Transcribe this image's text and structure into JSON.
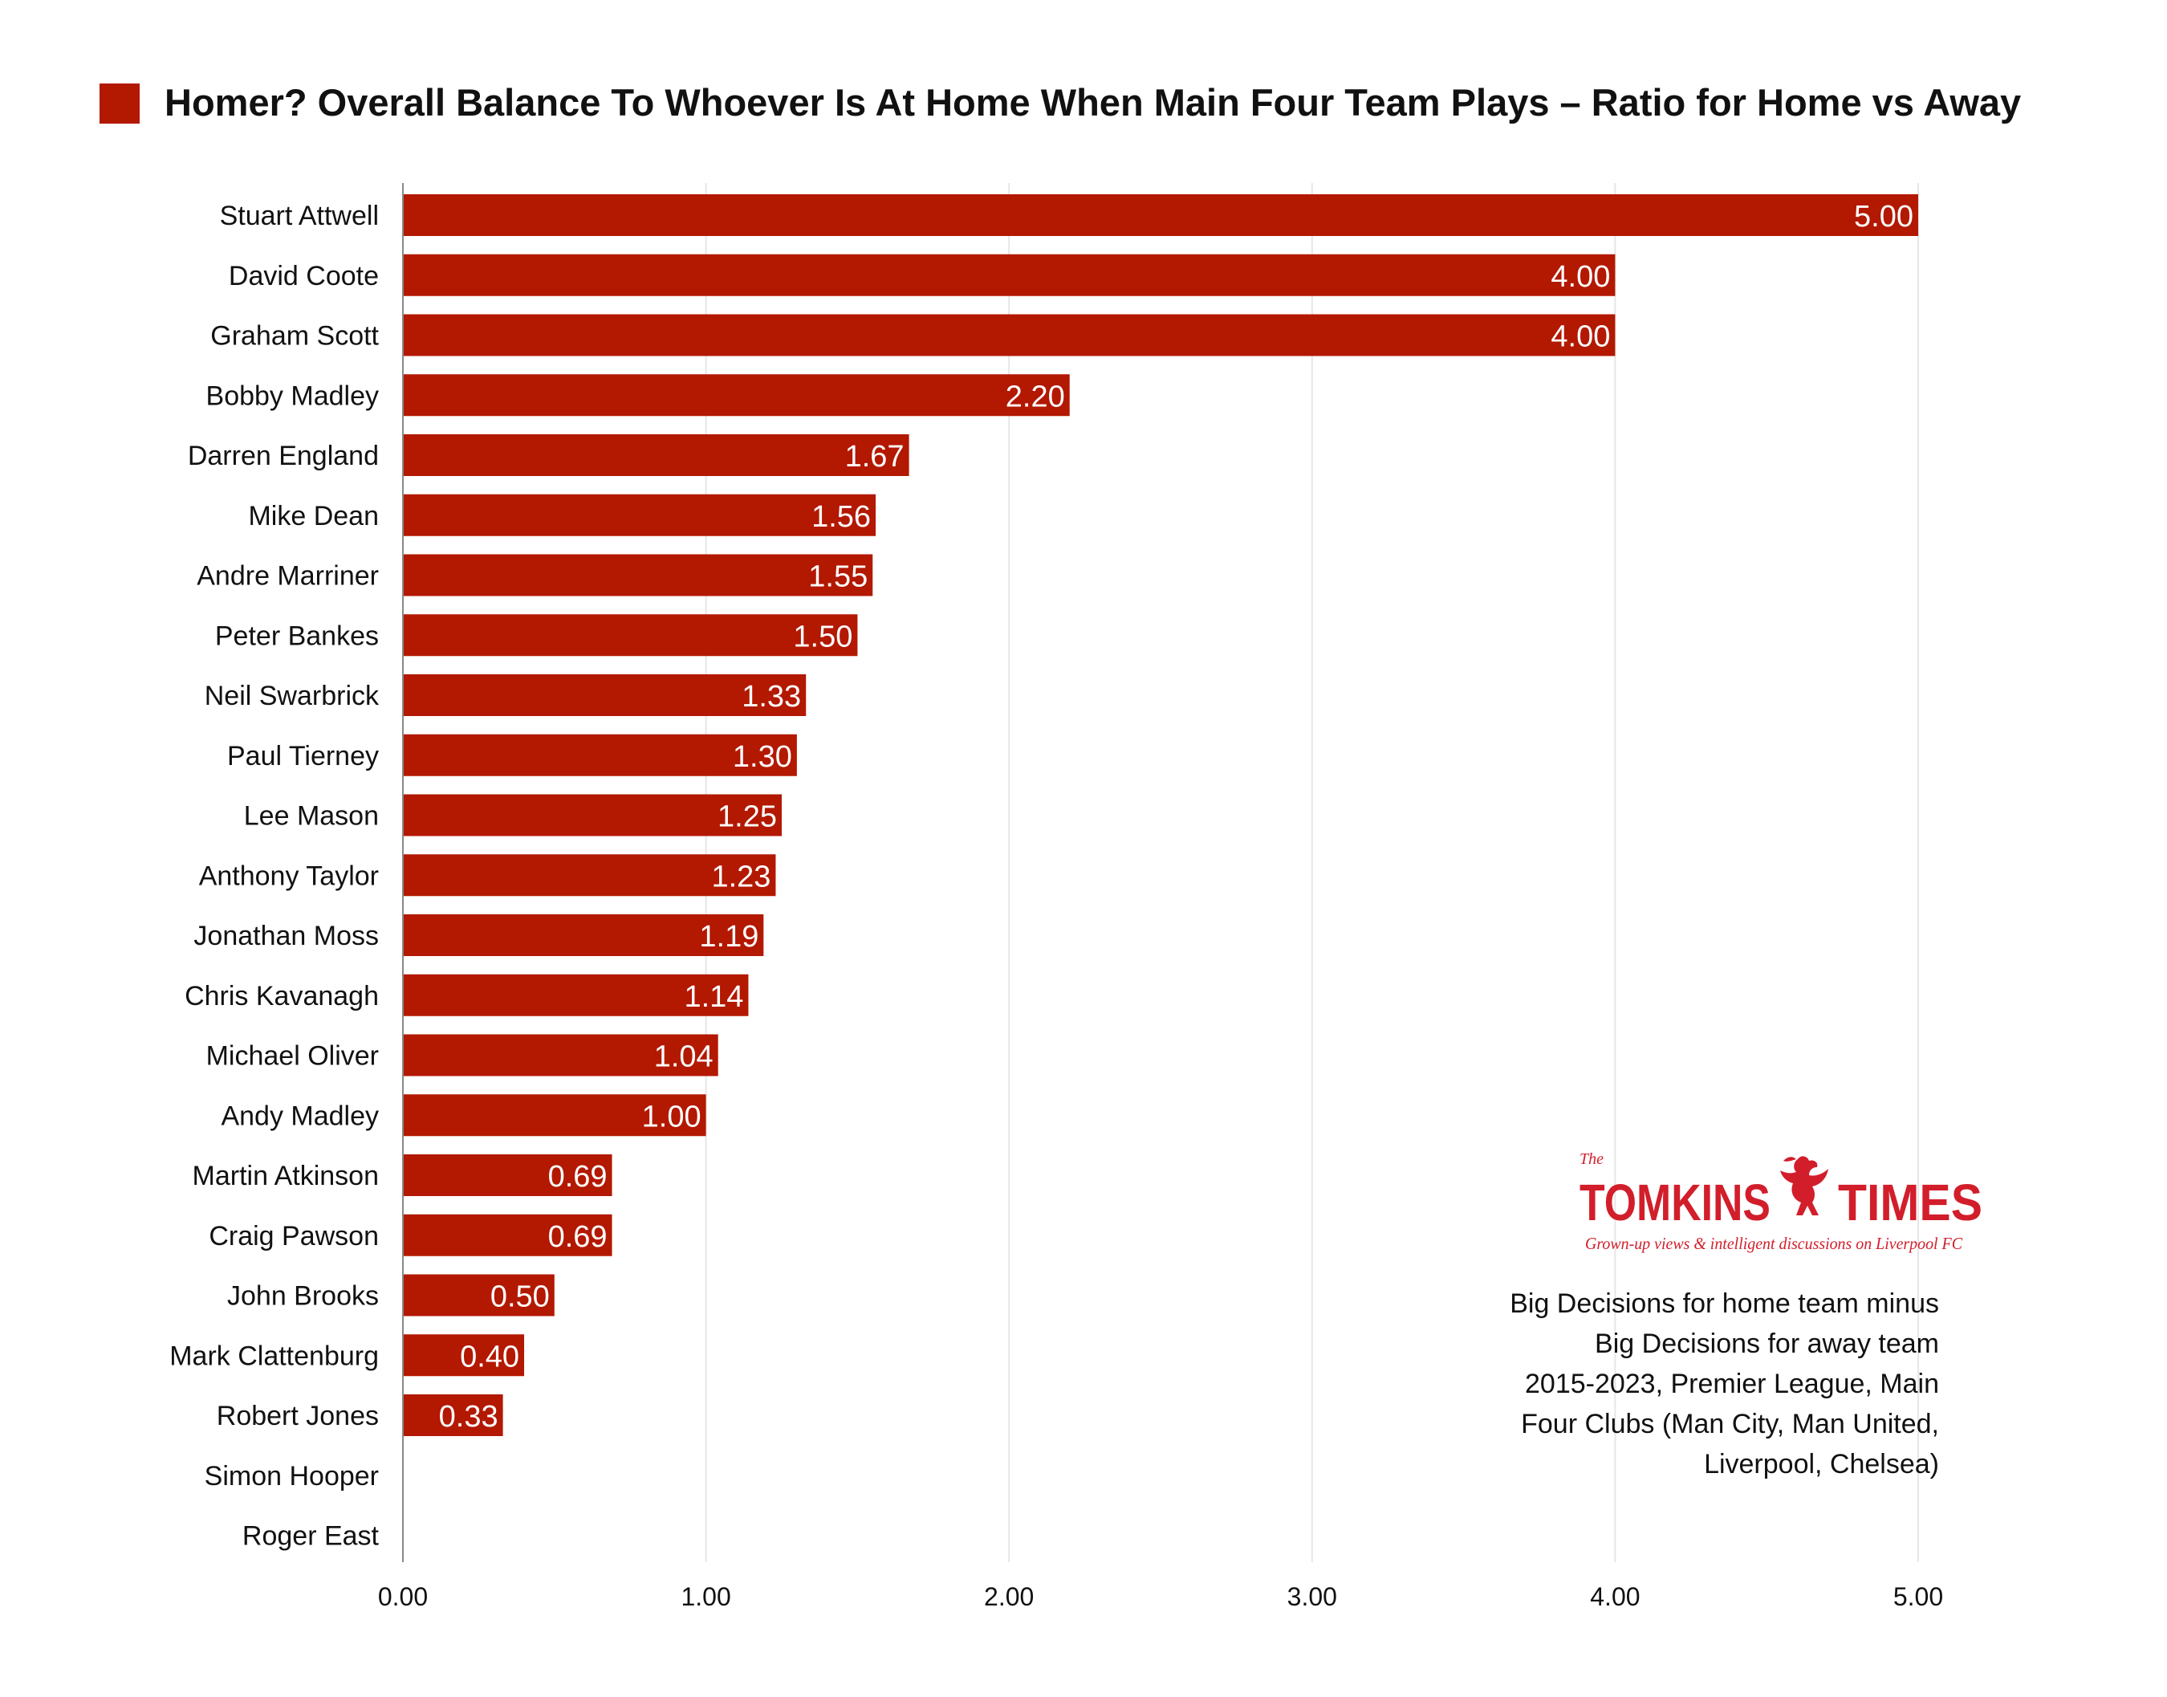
{
  "chart_data": {
    "type": "bar",
    "orientation": "horizontal",
    "title": "Homer? Overall Balance To Whoever Is At Home When Main Four Team Plays – Ratio for Home vs Away",
    "xlabel": "",
    "ylabel": "",
    "legend_position": "top-left",
    "grid": "vertical",
    "xlim": [
      0,
      5
    ],
    "ticks": [
      "0.00",
      "1.00",
      "2.00",
      "3.00",
      "4.00",
      "5.00"
    ],
    "categories": [
      "Stuart Attwell",
      "David Coote",
      "Graham Scott",
      "Bobby Madley",
      "Darren England",
      "Mike Dean",
      "Andre Marriner",
      "Peter Bankes",
      "Neil Swarbrick",
      "Paul Tierney",
      "Lee Mason",
      "Anthony Taylor",
      "Jonathan Moss",
      "Chris Kavanagh",
      "Michael Oliver",
      "Andy Madley",
      "Martin Atkinson",
      "Craig Pawson",
      "John Brooks",
      "Mark Clattenburg",
      "Robert Jones",
      "Simon Hooper",
      "Roger East"
    ],
    "values": [
      5.0,
      4.0,
      4.0,
      2.2,
      1.67,
      1.56,
      1.55,
      1.5,
      1.33,
      1.3,
      1.25,
      1.23,
      1.19,
      1.14,
      1.04,
      1.0,
      0.69,
      0.69,
      0.5,
      0.4,
      0.33,
      null,
      null
    ],
    "value_labels": [
      "5.00",
      "4.00",
      "4.00",
      "2.20",
      "1.67",
      "1.56",
      "1.55",
      "1.50",
      "1.33",
      "1.30",
      "1.25",
      "1.23",
      "1.19",
      "1.14",
      "1.04",
      "1.00",
      "0.69",
      "0.69",
      "0.50",
      "0.40",
      "0.33",
      "",
      ""
    ],
    "bar_color": "#b31800",
    "annotation_lines": [
      "Big Decisions for home team minus",
      "Big Decisions for away team",
      "2015-2023, Premier League, Main",
      "Four Clubs (Man City, Man United,",
      "Liverpool, Chelsea)"
    ]
  },
  "logo": {
    "the": "The",
    "left": "TOMKINS",
    "right": "TIMES",
    "tagline": "Grown-up views & intelligent discussions on Liverpool FC",
    "color": "#d21e2b",
    "icon": "liverbird-icon"
  }
}
